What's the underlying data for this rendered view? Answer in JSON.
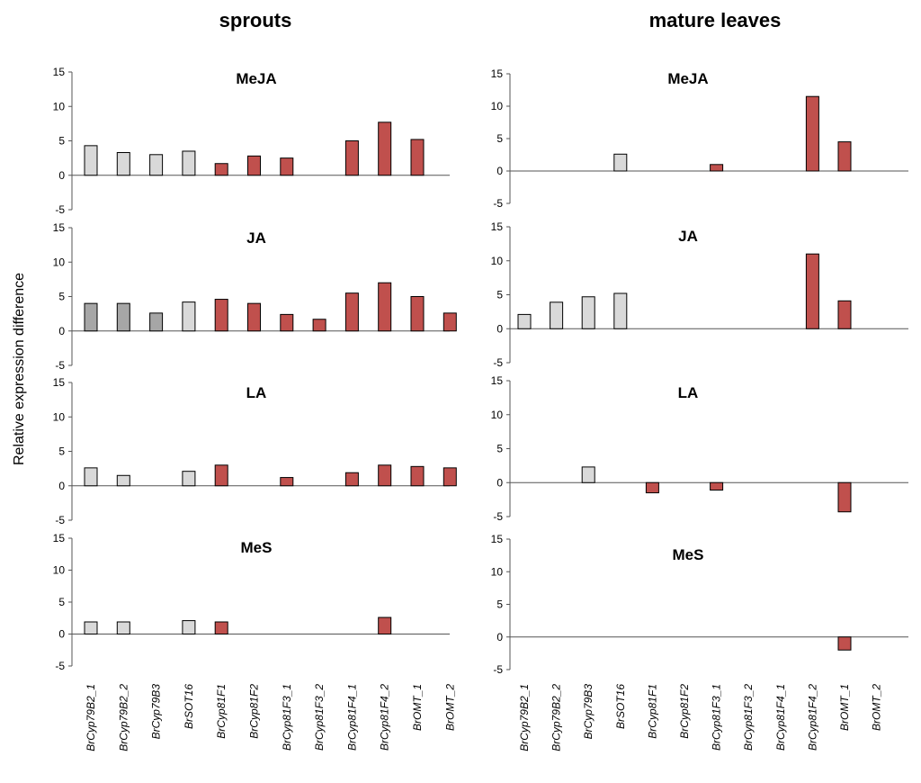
{
  "figure": {
    "columns": [
      "sprouts",
      "mature leaves"
    ],
    "ylabel": "Relative expression difference"
  },
  "chart_data": [
    {
      "type": "bar",
      "column": "sprouts",
      "title": "MeJA",
      "ylim": [
        -5,
        15
      ],
      "yticks": [
        15,
        10,
        5,
        0,
        -5
      ],
      "categories": [
        "BrCyp79B2_1",
        "BrCyp79B2_2",
        "BrCyp79B3",
        "BrSOT16",
        "BrCyp81F1",
        "BrCyp81F2",
        "BrCyp81F3_1",
        "BrCyp81F3_2",
        "BrCyp81F4_1",
        "BrCyp81F4_2",
        "BrOMT_1",
        "BrOMT_2"
      ],
      "values": [
        4.3,
        3.3,
        3.0,
        3.5,
        1.7,
        2.8,
        2.5,
        null,
        5.0,
        7.7,
        5.2,
        null
      ],
      "colors": [
        "#d9d9d9",
        "#d9d9d9",
        "#d9d9d9",
        "#d9d9d9",
        "#c0504d",
        "#c0504d",
        "#c0504d",
        "#c0504d",
        "#c0504d",
        "#c0504d",
        "#c0504d",
        "#c0504d"
      ]
    },
    {
      "type": "bar",
      "column": "sprouts",
      "title": "JA",
      "ylim": [
        -5,
        15
      ],
      "yticks": [
        15,
        10,
        5,
        0,
        -5
      ],
      "categories": [
        "BrCyp79B2_1",
        "BrCyp79B2_2",
        "BrCyp79B3",
        "BrSOT16",
        "BrCyp81F1",
        "BrCyp81F2",
        "BrCyp81F3_1",
        "BrCyp81F3_2",
        "BrCyp81F4_1",
        "BrCyp81F4_2",
        "BrOMT_1",
        "BrOMT_2"
      ],
      "values": [
        4.0,
        4.0,
        2.6,
        4.2,
        4.6,
        4.0,
        2.4,
        1.7,
        5.5,
        7.0,
        5.0,
        2.6
      ],
      "colors": [
        "#a6a6a6",
        "#a6a6a6",
        "#a6a6a6",
        "#d9d9d9",
        "#c0504d",
        "#c0504d",
        "#c0504d",
        "#c0504d",
        "#c0504d",
        "#c0504d",
        "#c0504d",
        "#c0504d"
      ]
    },
    {
      "type": "bar",
      "column": "sprouts",
      "title": "LA",
      "ylim": [
        -5,
        15
      ],
      "yticks": [
        15,
        10,
        5,
        0,
        -5
      ],
      "categories": [
        "BrCyp79B2_1",
        "BrCyp79B2_2",
        "BrCyp79B3",
        "BrSOT16",
        "BrCyp81F1",
        "BrCyp81F2",
        "BrCyp81F3_1",
        "BrCyp81F3_2",
        "BrCyp81F4_1",
        "BrCyp81F4_2",
        "BrOMT_1",
        "BrOMT_2"
      ],
      "values": [
        2.6,
        1.5,
        null,
        2.1,
        3.0,
        null,
        1.2,
        null,
        1.9,
        3.0,
        2.8,
        2.6
      ],
      "colors": [
        "#d9d9d9",
        "#d9d9d9",
        "#d9d9d9",
        "#d9d9d9",
        "#c0504d",
        "#c0504d",
        "#c0504d",
        "#c0504d",
        "#c0504d",
        "#c0504d",
        "#c0504d",
        "#c0504d"
      ]
    },
    {
      "type": "bar",
      "column": "sprouts",
      "title": "MeS",
      "ylim": [
        -5,
        15
      ],
      "yticks": [
        15,
        10,
        5,
        0,
        -5
      ],
      "categories": [
        "BrCyp79B2_1",
        "BrCyp79B2_2",
        "BrCyp79B3",
        "BrSOT16",
        "BrCyp81F1",
        "BrCyp81F2",
        "BrCyp81F3_1",
        "BrCyp81F3_2",
        "BrCyp81F4_1",
        "BrCyp81F4_2",
        "BrOMT_1",
        "BrOMT_2"
      ],
      "values": [
        1.9,
        1.9,
        null,
        2.1,
        1.9,
        null,
        null,
        null,
        null,
        2.6,
        null,
        null
      ],
      "colors": [
        "#d9d9d9",
        "#d9d9d9",
        "#d9d9d9",
        "#d9d9d9",
        "#c0504d",
        "#c0504d",
        "#c0504d",
        "#c0504d",
        "#c0504d",
        "#c0504d",
        "#c0504d",
        "#c0504d"
      ]
    },
    {
      "type": "bar",
      "column": "mature leaves",
      "title": "MeJA",
      "ylim": [
        -5,
        15
      ],
      "yticks": [
        15,
        10,
        5,
        0,
        -5
      ],
      "categories": [
        "BrCyp79B2_1",
        "BrCyp79B2_2",
        "BrCyp79B3",
        "BrSOT16",
        "BrCyp81F1",
        "BrCyp81F2",
        "BrCyp81F3_1",
        "BrCyp81F3_2",
        "BrCyp81F4_1",
        "BrCyp81F4_2",
        "BrOMT_1",
        "BrOMT_2"
      ],
      "values": [
        null,
        null,
        null,
        2.6,
        null,
        null,
        1.0,
        null,
        null,
        11.5,
        4.5,
        null
      ],
      "colors": [
        "#d9d9d9",
        "#d9d9d9",
        "#d9d9d9",
        "#d9d9d9",
        "#c0504d",
        "#c0504d",
        "#c0504d",
        "#c0504d",
        "#c0504d",
        "#c0504d",
        "#c0504d",
        "#c0504d"
      ]
    },
    {
      "type": "bar",
      "column": "mature leaves",
      "title": "JA",
      "ylim": [
        -5,
        15
      ],
      "yticks": [
        15,
        10,
        5,
        0,
        -5
      ],
      "categories": [
        "BrCyp79B2_1",
        "BrCyp79B2_2",
        "BrCyp79B3",
        "BrSOT16",
        "BrCyp81F1",
        "BrCyp81F2",
        "BrCyp81F3_1",
        "BrCyp81F3_2",
        "BrCyp81F4_1",
        "BrCyp81F4_2",
        "BrOMT_1",
        "BrOMT_2"
      ],
      "values": [
        2.1,
        3.9,
        4.7,
        5.2,
        null,
        null,
        null,
        null,
        null,
        11.0,
        4.1,
        null
      ],
      "colors": [
        "#d9d9d9",
        "#d9d9d9",
        "#d9d9d9",
        "#d9d9d9",
        "#c0504d",
        "#c0504d",
        "#c0504d",
        "#c0504d",
        "#c0504d",
        "#c0504d",
        "#c0504d",
        "#c0504d"
      ]
    },
    {
      "type": "bar",
      "column": "mature leaves",
      "title": "LA",
      "ylim": [
        -5,
        15
      ],
      "yticks": [
        15,
        10,
        5,
        0,
        -5
      ],
      "categories": [
        "BrCyp79B2_1",
        "BrCyp79B2_2",
        "BrCyp79B3",
        "BrSOT16",
        "BrCyp81F1",
        "BrCyp81F2",
        "BrCyp81F3_1",
        "BrCyp81F3_2",
        "BrCyp81F4_1",
        "BrCyp81F4_2",
        "BrOMT_1",
        "BrOMT_2"
      ],
      "values": [
        null,
        null,
        2.3,
        null,
        -1.5,
        null,
        -1.1,
        null,
        null,
        null,
        -4.3,
        null
      ],
      "colors": [
        "#d9d9d9",
        "#d9d9d9",
        "#d9d9d9",
        "#d9d9d9",
        "#c0504d",
        "#c0504d",
        "#c0504d",
        "#c0504d",
        "#c0504d",
        "#c0504d",
        "#c0504d",
        "#c0504d"
      ]
    },
    {
      "type": "bar",
      "column": "mature leaves",
      "title": "MeS",
      "ylim": [
        -5,
        15
      ],
      "yticks": [
        15,
        10,
        5,
        0,
        -5
      ],
      "categories": [
        "BrCyp79B2_1",
        "BrCyp79B2_2",
        "BrCyp79B3",
        "BrSOT16",
        "BrCyp81F1",
        "BrCyp81F2",
        "BrCyp81F3_1",
        "BrCyp81F3_2",
        "BrCyp81F4_1",
        "BrCyp81F4_2",
        "BrOMT_1",
        "BrOMT_2"
      ],
      "values": [
        null,
        null,
        null,
        null,
        null,
        null,
        null,
        null,
        null,
        null,
        -2.0,
        null
      ],
      "colors": [
        "#d9d9d9",
        "#d9d9d9",
        "#d9d9d9",
        "#d9d9d9",
        "#c0504d",
        "#c0504d",
        "#c0504d",
        "#c0504d",
        "#c0504d",
        "#c0504d",
        "#c0504d",
        "#c0504d"
      ]
    }
  ]
}
